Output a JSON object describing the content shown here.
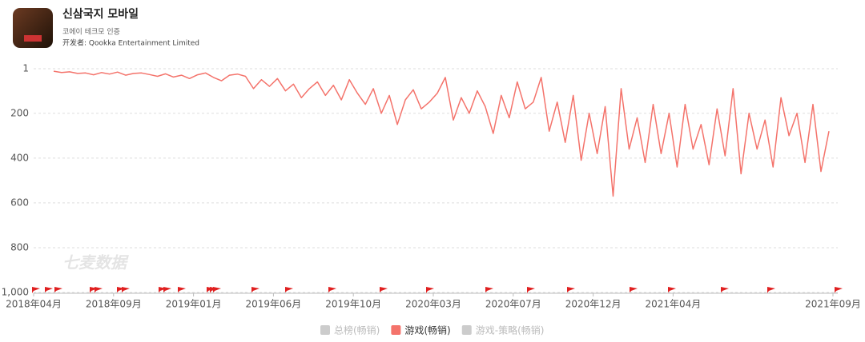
{
  "header": {
    "title": "신삼국지 모바일",
    "subtitle": "코에이 테크모 인증",
    "developer": "开发者: Qookka Entertainment Limited"
  },
  "watermark": "七麦数据",
  "chart_data": {
    "type": "line",
    "x": [
      35,
      49,
      63,
      77,
      91,
      105,
      119,
      133,
      147,
      161,
      175,
      189,
      203,
      217,
      231,
      245,
      259,
      273,
      287,
      301,
      315,
      329,
      343,
      357,
      371,
      385,
      399,
      413,
      427,
      441,
      455,
      469,
      483,
      497,
      511,
      525,
      539,
      553,
      567,
      581,
      595,
      609,
      623,
      637,
      651,
      665,
      679,
      693,
      707,
      721,
      735,
      749,
      763,
      777,
      791,
      805,
      819,
      833,
      847,
      861,
      875,
      889,
      903,
      917,
      931,
      945,
      959,
      973,
      987,
      1001,
      1015,
      1029,
      1043,
      1057,
      1071,
      1085,
      1099,
      1113,
      1127,
      1141,
      1155,
      1169,
      1183,
      1197,
      1211,
      1225,
      1239,
      1253,
      1267,
      1281,
      1295,
      1309,
      1323,
      1337,
      1351,
      1365,
      1379,
      1393
    ],
    "series": [
      {
        "name": "游戏(畅销)",
        "color": "#f4736b",
        "values": [
          12,
          18,
          15,
          22,
          20,
          28,
          18,
          25,
          16,
          30,
          22,
          20,
          27,
          35,
          24,
          38,
          30,
          45,
          28,
          20,
          40,
          55,
          30,
          25,
          35,
          90,
          50,
          80,
          45,
          100,
          70,
          130,
          90,
          60,
          120,
          75,
          140,
          50,
          110,
          160,
          90,
          200,
          120,
          250,
          140,
          95,
          180,
          150,
          110,
          40,
          230,
          130,
          200,
          100,
          170,
          290,
          120,
          220,
          60,
          180,
          150,
          40,
          280,
          150,
          330,
          120,
          410,
          200,
          380,
          170,
          570,
          90,
          360,
          220,
          420,
          160,
          380,
          200,
          440,
          160,
          360,
          250,
          430,
          180,
          390,
          90,
          470,
          200,
          360,
          230,
          440,
          130,
          300,
          200,
          420,
          160,
          460,
          280
        ]
      }
    ],
    "legend": [
      {
        "name": "总榜(畅销)",
        "color": "#cccccc"
      },
      {
        "name": "游戏(畅销)",
        "color": "#f4736b"
      },
      {
        "name": "游戏-策略(畅销)",
        "color": "#cccccc"
      }
    ],
    "xlim": [
      0,
      1400
    ],
    "xticks": [
      {
        "value": 0,
        "label": "2018年04月"
      },
      {
        "value": 140,
        "label": "2018年09月"
      },
      {
        "value": 280,
        "label": "2019年01月"
      },
      {
        "value": 420,
        "label": "2019年06月"
      },
      {
        "value": 560,
        "label": "2019年10月"
      },
      {
        "value": 700,
        "label": "2020年03月"
      },
      {
        "value": 840,
        "label": "2020年07月"
      },
      {
        "value": 980,
        "label": "2020年12月"
      },
      {
        "value": 1120,
        "label": "2021年04月"
      },
      {
        "value": 1400,
        "label": "2021年09月"
      }
    ],
    "ylim": [
      1,
      1000
    ],
    "yreverse": true,
    "yticks": [
      1,
      200,
      400,
      600,
      800,
      {
        "value": 1000,
        "label": "1,000"
      }
    ],
    "grid": true
  }
}
